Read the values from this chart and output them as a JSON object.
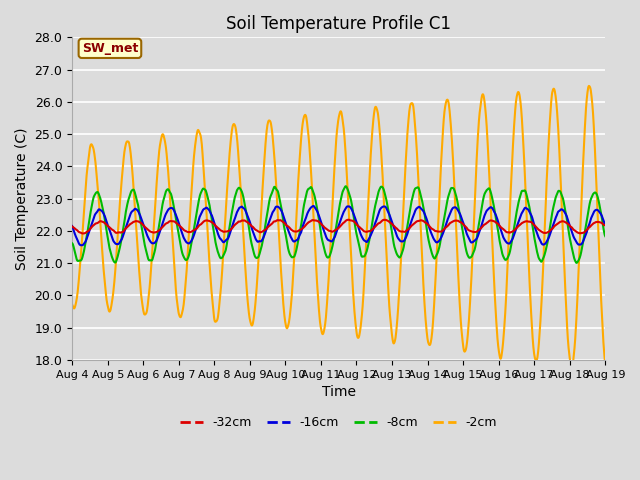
{
  "title": "Soil Temperature Profile C1",
  "xlabel": "Time",
  "ylabel": "Soil Temperature (C)",
  "ylim": [
    18.0,
    28.0
  ],
  "yticks": [
    18.0,
    19.0,
    20.0,
    21.0,
    22.0,
    23.0,
    24.0,
    25.0,
    26.0,
    27.0,
    28.0
  ],
  "x_labels": [
    "Aug 4",
    "Aug 5",
    "Aug 6",
    "Aug 7",
    "Aug 8",
    "Aug 9",
    "Aug 10",
    "Aug 11",
    "Aug 12",
    "Aug 13",
    "Aug 14",
    "Aug 15",
    "Aug 16",
    "Aug 17",
    "Aug 18",
    "Aug 19"
  ],
  "colors": {
    "-32cm": "#dd0000",
    "-16cm": "#0000dd",
    "-8cm": "#00bb00",
    "-2cm": "#ffaa00"
  },
  "legend_label": "SW_met",
  "bg_color": "#dcdcdc",
  "grid_color": "#f0f0f0"
}
